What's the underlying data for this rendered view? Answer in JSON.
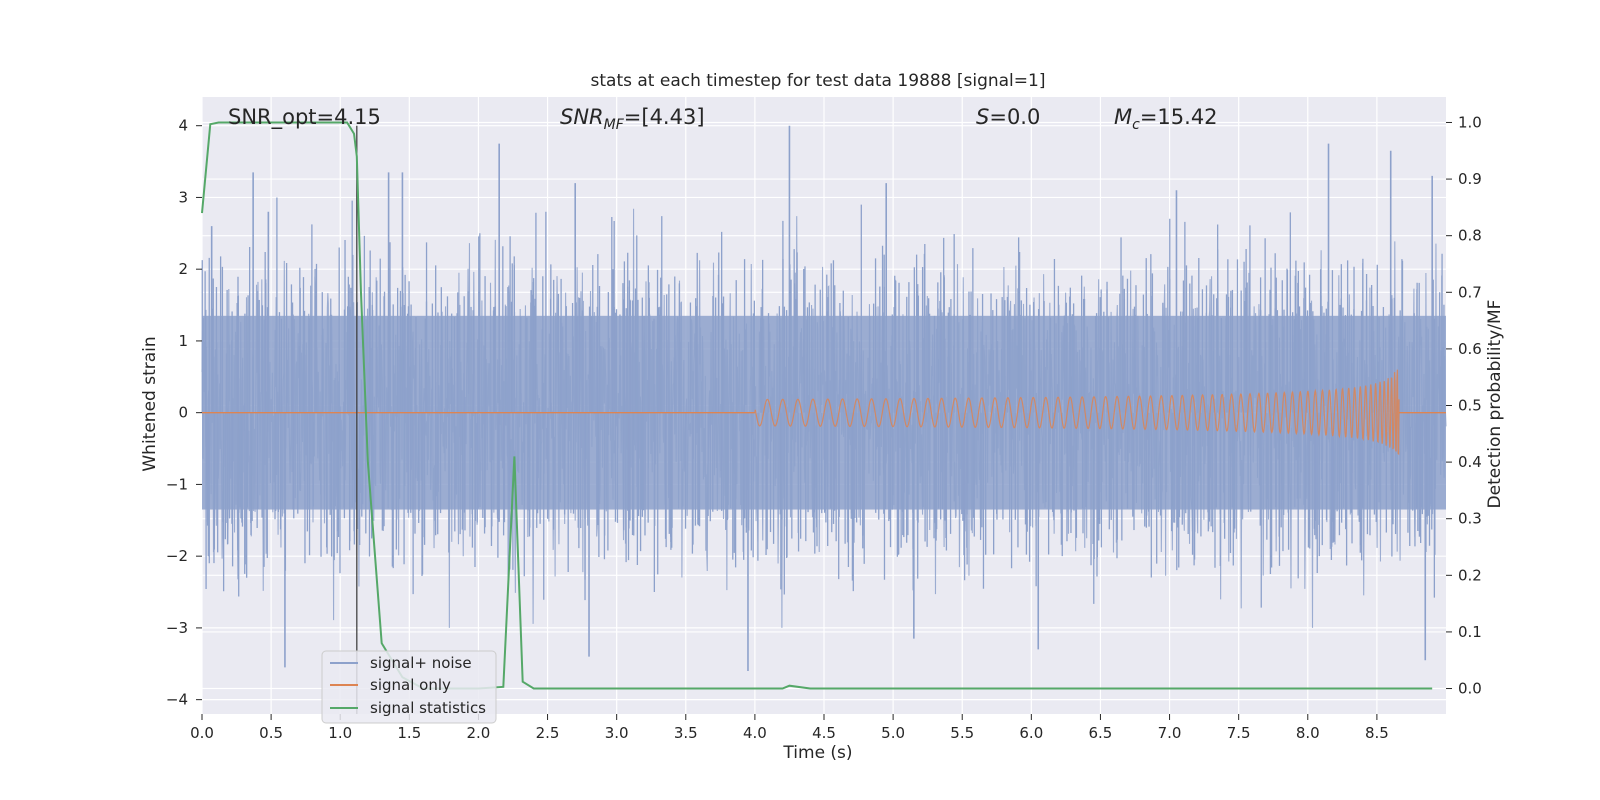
{
  "chart_data": {
    "type": "line",
    "title": "stats at each timestep for test data 19888 [signal=1]",
    "xlabel": "Time (s)",
    "ylabel_left": "Whitened strain",
    "ylabel_right": "Detection probability/MF",
    "xlim": [
      0.0,
      9.0
    ],
    "ylim_left": [
      -4.2,
      4.4
    ],
    "ylim_right": [
      -0.045,
      1.045
    ],
    "x_ticks": [
      0.0,
      0.5,
      1.0,
      1.5,
      2.0,
      2.5,
      3.0,
      3.5,
      4.0,
      4.5,
      5.0,
      5.5,
      6.0,
      6.5,
      7.0,
      7.5,
      8.0,
      8.5
    ],
    "x_tick_labels": [
      "0.0",
      "0.5",
      "1.0",
      "1.5",
      "2.0",
      "2.5",
      "3.0",
      "3.5",
      "4.0",
      "4.5",
      "5.0",
      "5.5",
      "6.0",
      "6.5",
      "7.0",
      "7.5",
      "8.0",
      "8.5"
    ],
    "y_left_ticks": [
      4,
      3,
      2,
      1,
      0,
      -1,
      -2,
      -3,
      -4
    ],
    "y_left_tick_labels": [
      "4",
      "3",
      "2",
      "1",
      "0",
      "−1",
      "−2",
      "−3",
      "−4"
    ],
    "y_right_ticks": [
      1.0,
      0.9,
      0.8,
      0.7,
      0.6,
      0.5,
      0.4,
      0.3,
      0.2,
      0.1,
      0.0
    ],
    "y_right_tick_labels": [
      "1.0",
      "0.9",
      "0.8",
      "0.7",
      "0.6",
      "0.5",
      "0.4",
      "0.3",
      "0.2",
      "0.1",
      "0.0"
    ],
    "grid": true,
    "legend_position": "lower-left",
    "annotations": {
      "snr_opt": "SNR_opt=4.15",
      "snr_mf_base": "SNR",
      "snr_mf_sub": "MF",
      "snr_mf_rest": "=[4.43]",
      "s_italic": "S",
      "s_rest": "=0.0",
      "mc_base": "M",
      "mc_sub": "c",
      "mc_rest": "=15.42"
    },
    "vertical_marker_x": 1.12,
    "series": [
      {
        "name": "signal+ noise",
        "color": "#8da1cb",
        "axis": "left",
        "description_kind": "whitened noise",
        "amplitude_envelope_typical": 1.4,
        "peaks": [
          {
            "x": 0.07,
            "y": 2.6
          },
          {
            "x": 0.37,
            "y": 3.35
          },
          {
            "x": 0.48,
            "y": 2.8
          },
          {
            "x": 0.6,
            "y": -3.55
          },
          {
            "x": 1.35,
            "y": 3.35
          },
          {
            "x": 1.45,
            "y": 3.35
          },
          {
            "x": 2.15,
            "y": 3.75
          },
          {
            "x": 2.7,
            "y": 3.2
          },
          {
            "x": 2.8,
            "y": -3.4
          },
          {
            "x": 3.95,
            "y": -3.6
          },
          {
            "x": 4.25,
            "y": 4.0
          },
          {
            "x": 4.95,
            "y": 3.2
          },
          {
            "x": 5.15,
            "y": -3.15
          },
          {
            "x": 6.05,
            "y": -3.3
          },
          {
            "x": 7.05,
            "y": 3.1
          },
          {
            "x": 8.15,
            "y": 3.75
          },
          {
            "x": 8.6,
            "y": 3.65
          },
          {
            "x": 8.85,
            "y": -3.45
          },
          {
            "x": 8.9,
            "y": 3.3
          }
        ]
      },
      {
        "name": "signal only",
        "color": "#dd8452",
        "axis": "left",
        "chirp": {
          "start_x": 4.0,
          "end_x": 8.66,
          "peak_amplitude": 0.72
        }
      },
      {
        "name": "signal statistics",
        "color": "#55a868",
        "axis": "right",
        "x": [
          0.0,
          0.06,
          0.12,
          0.5,
          1.0,
          1.05,
          1.1,
          1.12,
          1.15,
          1.2,
          1.3,
          1.45,
          1.6,
          2.0,
          2.18,
          2.26,
          2.32,
          2.4,
          3.0,
          4.0,
          4.2,
          4.25,
          4.4,
          5.0,
          6.0,
          7.0,
          8.0,
          8.9
        ],
        "y": [
          0.84,
          0.997,
          1.0,
          1.0,
          1.0,
          1.0,
          0.98,
          0.94,
          0.7,
          0.4,
          0.08,
          0.02,
          0.0,
          0.0,
          0.003,
          0.41,
          0.012,
          0.0,
          0.0,
          0.0,
          0.0,
          0.005,
          0.0,
          0.0,
          0.0,
          0.0,
          0.0,
          0.0
        ]
      }
    ]
  }
}
